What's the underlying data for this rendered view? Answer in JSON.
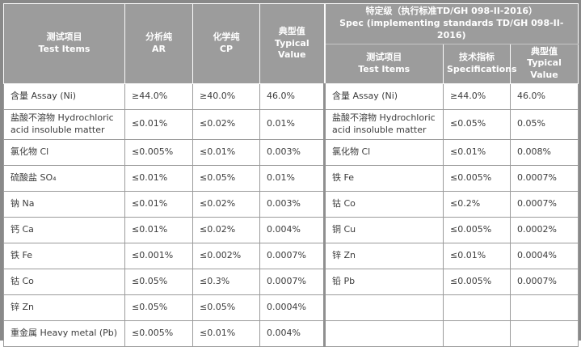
{
  "table": {
    "left": {
      "col_headers": [
        {
          "zh": "测试项目",
          "en": "Test Items"
        },
        {
          "zh": "分析纯",
          "en": "AR"
        },
        {
          "zh": "化学纯",
          "en": "CP"
        },
        {
          "zh": "典型值",
          "en": "Typical Value"
        }
      ]
    },
    "spec": {
      "title_zh": "特定级（执行标准TD/GH 098-II-2016）",
      "title_en": "Spec (implementing standards TD/GH 098-II-2016)",
      "col_headers": [
        {
          "zh": "测试项目",
          "en": "Test Items"
        },
        {
          "zh": "技术指标",
          "en": "Specifications"
        },
        {
          "zh": "典型值",
          "en": "Typical Value"
        }
      ]
    },
    "rows": [
      {
        "left": [
          "含量 Assay (Ni)",
          "≥44.0%",
          "≥40.0%",
          "46.0%"
        ],
        "right": [
          "含量 Assay (Ni)",
          "≥44.0%",
          "46.0%"
        ]
      },
      {
        "left": [
          "盐酸不溶物 Hydrochloric acid insoluble matter",
          "≤0.01%",
          "≤0.02%",
          "0.01%"
        ],
        "right": [
          "盐酸不溶物 Hydrochloric acid insoluble matter",
          "≤0.05%",
          "0.05%"
        ]
      },
      {
        "left": [
          "氯化物 Cl",
          "≤0.005%",
          "≤0.01%",
          "0.003%"
        ],
        "right": [
          "氯化物 Cl",
          "≤0.01%",
          "0.008%"
        ]
      },
      {
        "left": [
          "硫酸盐 SO₄",
          "≤0.01%",
          "≤0.05%",
          "0.01%"
        ],
        "right": [
          "铁 Fe",
          "≤0.005%",
          "0.0007%"
        ]
      },
      {
        "left": [
          "钠 Na",
          "≤0.01%",
          "≤0.02%",
          "0.003%"
        ],
        "right": [
          "钴 Co",
          "≤0.2%",
          "0.0007%"
        ]
      },
      {
        "left": [
          "钙 Ca",
          "≤0.01%",
          "≤0.02%",
          "0.004%"
        ],
        "right": [
          "铜 Cu",
          "≤0.005%",
          "0.0002%"
        ]
      },
      {
        "left": [
          "铁 Fe",
          "≤0.001%",
          "≤0.002%",
          "0.0007%"
        ],
        "right": [
          "锌 Zn",
          "≤0.01%",
          "0.0004%"
        ]
      },
      {
        "left": [
          "钴 Co",
          "≤0.05%",
          "≤0.3%",
          "0.0007%"
        ],
        "right": [
          "铅 Pb",
          "≤0.005%",
          "0.0007%"
        ]
      },
      {
        "left": [
          "锌 Zn",
          "≤0.05%",
          "≤0.05%",
          "0.0004%"
        ],
        "right": [
          "",
          "",
          ""
        ]
      },
      {
        "left": [
          "重金属 Heavy metal (Pb)",
          "≤0.005%",
          "≤0.01%",
          "0.004%"
        ],
        "right": [
          "",
          "",
          ""
        ]
      }
    ],
    "colors": {
      "header_bg": "#9c9c9c",
      "header_text": "#ffffff",
      "outer_border": "#898989",
      "body_border": "#9b9b9b",
      "body_text": "#3c3c3c"
    }
  }
}
